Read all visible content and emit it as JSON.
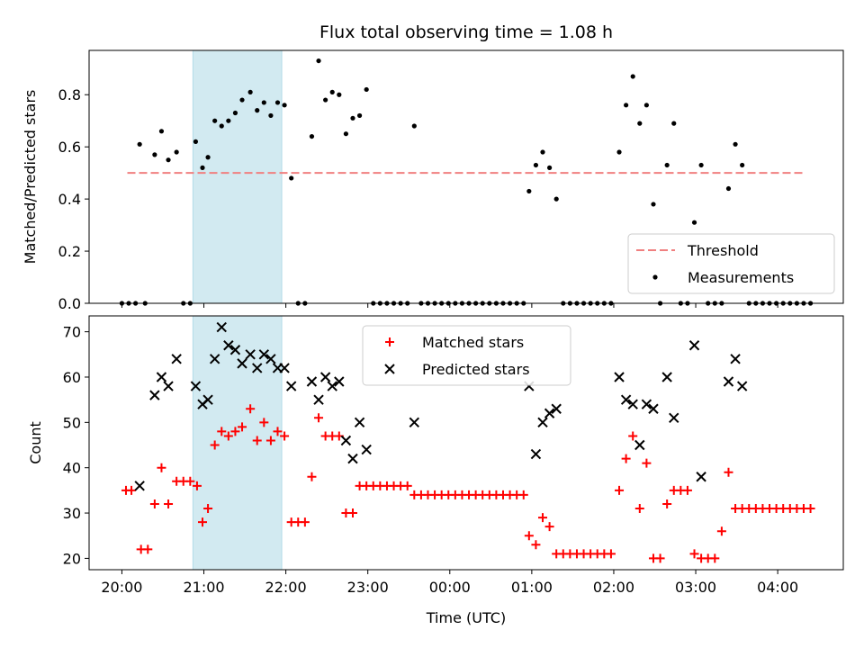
{
  "chart_data": [
    {
      "type": "scatter",
      "title": "Flux total observing time = 1.08 h",
      "xlabel": "",
      "ylabel": "Matched/Predicted stars",
      "ylim": [
        0,
        0.97
      ],
      "yticks": [
        0.0,
        0.2,
        0.4,
        0.6,
        0.8
      ],
      "ytick_labels": [
        "0.0",
        "0.2",
        "0.4",
        "0.6",
        "0.8"
      ],
      "legend_position": "lower-right",
      "shaded_interval": {
        "start": "20:52",
        "end": "21:57",
        "color": "#add8e6"
      },
      "threshold": {
        "name": "Threshold",
        "y": 0.5,
        "x": [
          "20:04",
          "04:20"
        ],
        "color": "#f08080",
        "style": "dashed"
      },
      "series": [
        {
          "name": "Measurements",
          "marker": "dot",
          "color": "#000000",
          "points": [
            [
              "20:00",
              0
            ],
            [
              "20:05",
              0
            ],
            [
              "20:10",
              0
            ],
            [
              "20:13",
              0.61
            ],
            [
              "20:17",
              0
            ],
            [
              "20:24",
              0.57
            ],
            [
              "20:29",
              0.66
            ],
            [
              "20:34",
              0.55
            ],
            [
              "20:40",
              0.58
            ],
            [
              "20:45",
              0
            ],
            [
              "20:50",
              0
            ],
            [
              "20:54",
              0.62
            ],
            [
              "20:59",
              0.52
            ],
            [
              "21:03",
              0.56
            ],
            [
              "21:08",
              0.7
            ],
            [
              "21:13",
              0.68
            ],
            [
              "21:18",
              0.7
            ],
            [
              "21:23",
              0.73
            ],
            [
              "21:28",
              0.78
            ],
            [
              "21:34",
              0.81
            ],
            [
              "21:39",
              0.74
            ],
            [
              "21:44",
              0.77
            ],
            [
              "21:49",
              0.72
            ],
            [
              "21:54",
              0.77
            ],
            [
              "21:59",
              0.76
            ],
            [
              "22:04",
              0.48
            ],
            [
              "22:09",
              0
            ],
            [
              "22:14",
              0
            ],
            [
              "22:19",
              0.64
            ],
            [
              "22:24",
              0.93
            ],
            [
              "22:29",
              0.78
            ],
            [
              "22:34",
              0.81
            ],
            [
              "22:39",
              0.8
            ],
            [
              "22:44",
              0.65
            ],
            [
              "22:49",
              0.71
            ],
            [
              "22:54",
              0.72
            ],
            [
              "22:59",
              0.82
            ],
            [
              "23:04",
              0
            ],
            [
              "23:09",
              0
            ],
            [
              "23:14",
              0
            ],
            [
              "23:19",
              0
            ],
            [
              "23:24",
              0
            ],
            [
              "23:29",
              0
            ],
            [
              "23:34",
              0.68
            ],
            [
              "23:39",
              0
            ],
            [
              "23:44",
              0
            ],
            [
              "23:49",
              0
            ],
            [
              "23:54",
              0
            ],
            [
              "23:59",
              0
            ],
            [
              "00:04",
              0
            ],
            [
              "00:09",
              0
            ],
            [
              "00:14",
              0
            ],
            [
              "00:19",
              0
            ],
            [
              "00:24",
              0
            ],
            [
              "00:29",
              0
            ],
            [
              "00:34",
              0
            ],
            [
              "00:39",
              0
            ],
            [
              "00:44",
              0
            ],
            [
              "00:49",
              0
            ],
            [
              "00:54",
              0
            ],
            [
              "00:58",
              0.43
            ],
            [
              "01:03",
              0.53
            ],
            [
              "01:08",
              0.58
            ],
            [
              "01:13",
              0.52
            ],
            [
              "01:18",
              0.4
            ],
            [
              "01:23",
              0
            ],
            [
              "01:28",
              0
            ],
            [
              "01:33",
              0
            ],
            [
              "01:38",
              0
            ],
            [
              "01:43",
              0
            ],
            [
              "01:48",
              0
            ],
            [
              "01:53",
              0
            ],
            [
              "01:58",
              0
            ],
            [
              "02:04",
              0.58
            ],
            [
              "02:09",
              0.76
            ],
            [
              "02:14",
              0.87
            ],
            [
              "02:19",
              0.69
            ],
            [
              "02:24",
              0.76
            ],
            [
              "02:29",
              0.38
            ],
            [
              "02:34",
              0
            ],
            [
              "02:39",
              0.53
            ],
            [
              "02:44",
              0.69
            ],
            [
              "02:49",
              0
            ],
            [
              "02:54",
              0
            ],
            [
              "02:59",
              0.31
            ],
            [
              "03:04",
              0.53
            ],
            [
              "03:09",
              0
            ],
            [
              "03:14",
              0
            ],
            [
              "03:19",
              0
            ],
            [
              "03:24",
              0.44
            ],
            [
              "03:29",
              0.61
            ],
            [
              "03:34",
              0.53
            ],
            [
              "03:39",
              0
            ],
            [
              "03:44",
              0
            ],
            [
              "03:49",
              0
            ],
            [
              "03:54",
              0
            ],
            [
              "03:59",
              0
            ],
            [
              "04:04",
              0
            ],
            [
              "04:09",
              0
            ],
            [
              "04:14",
              0
            ],
            [
              "04:19",
              0
            ],
            [
              "04:24",
              0
            ]
          ]
        }
      ]
    },
    {
      "type": "scatter",
      "title": "",
      "xlabel": "Time (UTC)",
      "ylabel": "Count",
      "ylim": [
        17.5,
        73.5
      ],
      "yticks": [
        20,
        30,
        40,
        50,
        60,
        70
      ],
      "ytick_labels": [
        "20",
        "30",
        "40",
        "50",
        "60",
        "70"
      ],
      "xticks": [
        "20:00",
        "21:00",
        "22:00",
        "23:00",
        "00:00",
        "01:00",
        "02:00",
        "03:00",
        "04:00"
      ],
      "xlim": [
        "19:36",
        "04:48"
      ],
      "legend_position": "top-center",
      "shaded_interval": {
        "start": "20:52",
        "end": "21:57",
        "color": "#add8e6"
      },
      "series": [
        {
          "name": "Matched stars",
          "marker": "plus",
          "color": "#ff0000",
          "points": [
            [
              "20:03",
              35
            ],
            [
              "20:07",
              35
            ],
            [
              "20:14",
              22
            ],
            [
              "20:19",
              22
            ],
            [
              "20:24",
              32
            ],
            [
              "20:29",
              40
            ],
            [
              "20:34",
              32
            ],
            [
              "20:40",
              37
            ],
            [
              "20:45",
              37
            ],
            [
              "20:50",
              37
            ],
            [
              "20:55",
              36
            ],
            [
              "20:59",
              28
            ],
            [
              "21:03",
              31
            ],
            [
              "21:08",
              45
            ],
            [
              "21:13",
              48
            ],
            [
              "21:18",
              47
            ],
            [
              "21:23",
              48
            ],
            [
              "21:28",
              49
            ],
            [
              "21:34",
              53
            ],
            [
              "21:39",
              46
            ],
            [
              "21:44",
              50
            ],
            [
              "21:49",
              46
            ],
            [
              "21:54",
              48
            ],
            [
              "21:59",
              47
            ],
            [
              "22:04",
              28
            ],
            [
              "22:09",
              28
            ],
            [
              "22:14",
              28
            ],
            [
              "22:19",
              38
            ],
            [
              "22:24",
              51
            ],
            [
              "22:29",
              47
            ],
            [
              "22:34",
              47
            ],
            [
              "22:39",
              47
            ],
            [
              "22:44",
              30
            ],
            [
              "22:49",
              30
            ],
            [
              "22:54",
              36
            ],
            [
              "22:59",
              36
            ],
            [
              "23:04",
              36
            ],
            [
              "23:09",
              36
            ],
            [
              "23:14",
              36
            ],
            [
              "23:19",
              36
            ],
            [
              "23:24",
              36
            ],
            [
              "23:29",
              36
            ],
            [
              "23:34",
              34
            ],
            [
              "23:39",
              34
            ],
            [
              "23:44",
              34
            ],
            [
              "23:49",
              34
            ],
            [
              "23:54",
              34
            ],
            [
              "23:59",
              34
            ],
            [
              "00:04",
              34
            ],
            [
              "00:09",
              34
            ],
            [
              "00:14",
              34
            ],
            [
              "00:19",
              34
            ],
            [
              "00:24",
              34
            ],
            [
              "00:29",
              34
            ],
            [
              "00:34",
              34
            ],
            [
              "00:39",
              34
            ],
            [
              "00:44",
              34
            ],
            [
              "00:49",
              34
            ],
            [
              "00:54",
              34
            ],
            [
              "00:58",
              25
            ],
            [
              "01:03",
              23
            ],
            [
              "01:08",
              29
            ],
            [
              "01:13",
              27
            ],
            [
              "01:18",
              21
            ],
            [
              "01:23",
              21
            ],
            [
              "01:28",
              21
            ],
            [
              "01:33",
              21
            ],
            [
              "01:38",
              21
            ],
            [
              "01:43",
              21
            ],
            [
              "01:48",
              21
            ],
            [
              "01:53",
              21
            ],
            [
              "01:58",
              21
            ],
            [
              "02:04",
              35
            ],
            [
              "02:09",
              42
            ],
            [
              "02:14",
              47
            ],
            [
              "02:19",
              31
            ],
            [
              "02:24",
              41
            ],
            [
              "02:29",
              20
            ],
            [
              "02:34",
              20
            ],
            [
              "02:39",
              32
            ],
            [
              "02:44",
              35
            ],
            [
              "02:49",
              35
            ],
            [
              "02:54",
              35
            ],
            [
              "02:59",
              21
            ],
            [
              "03:04",
              20
            ],
            [
              "03:09",
              20
            ],
            [
              "03:14",
              20
            ],
            [
              "03:19",
              26
            ],
            [
              "03:24",
              39
            ],
            [
              "03:29",
              31
            ],
            [
              "03:34",
              31
            ],
            [
              "03:39",
              31
            ],
            [
              "03:44",
              31
            ],
            [
              "03:49",
              31
            ],
            [
              "03:54",
              31
            ],
            [
              "03:59",
              31
            ],
            [
              "04:04",
              31
            ],
            [
              "04:09",
              31
            ],
            [
              "04:14",
              31
            ],
            [
              "04:19",
              31
            ],
            [
              "04:24",
              31
            ]
          ]
        },
        {
          "name": "Predicted stars",
          "marker": "x",
          "color": "#000000",
          "points": [
            [
              "20:13",
              36
            ],
            [
              "20:24",
              56
            ],
            [
              "20:29",
              60
            ],
            [
              "20:34",
              58
            ],
            [
              "20:40",
              64
            ],
            [
              "20:54",
              58
            ],
            [
              "20:59",
              54
            ],
            [
              "21:03",
              55
            ],
            [
              "21:08",
              64
            ],
            [
              "21:13",
              71
            ],
            [
              "21:18",
              67
            ],
            [
              "21:23",
              66
            ],
            [
              "21:28",
              63
            ],
            [
              "21:34",
              65
            ],
            [
              "21:39",
              62
            ],
            [
              "21:44",
              65
            ],
            [
              "21:49",
              64
            ],
            [
              "21:54",
              62
            ],
            [
              "21:59",
              62
            ],
            [
              "22:04",
              58
            ],
            [
              "22:19",
              59
            ],
            [
              "22:24",
              55
            ],
            [
              "22:29",
              60
            ],
            [
              "22:34",
              58
            ],
            [
              "22:39",
              59
            ],
            [
              "22:44",
              46
            ],
            [
              "22:49",
              42
            ],
            [
              "22:54",
              50
            ],
            [
              "22:59",
              44
            ],
            [
              "23:34",
              50
            ],
            [
              "00:58",
              58
            ],
            [
              "01:03",
              43
            ],
            [
              "01:08",
              50
            ],
            [
              "01:13",
              52
            ],
            [
              "01:18",
              53
            ],
            [
              "02:04",
              60
            ],
            [
              "02:09",
              55
            ],
            [
              "02:14",
              54
            ],
            [
              "02:19",
              45
            ],
            [
              "02:24",
              54
            ],
            [
              "02:29",
              53
            ],
            [
              "02:39",
              60
            ],
            [
              "02:44",
              51
            ],
            [
              "02:59",
              67
            ],
            [
              "03:04",
              38
            ],
            [
              "03:24",
              59
            ],
            [
              "03:29",
              64
            ],
            [
              "03:34",
              58
            ]
          ]
        }
      ]
    }
  ]
}
